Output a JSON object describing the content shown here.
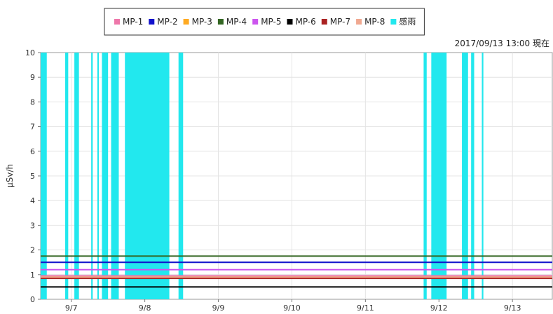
{
  "chart_data": {
    "type": "line",
    "title": "",
    "ylabel": "μSv/h",
    "xlabel": "",
    "annotation": "2017/09/13 13:00 現在",
    "ylim": [
      0,
      10
    ],
    "yticks": [
      0,
      1,
      2,
      3,
      4,
      5,
      6,
      7,
      8,
      9,
      10
    ],
    "xlim": [
      "2017-09-06 14:00",
      "2017-09-13 13:00"
    ],
    "x_tick_labels": [
      "9/7",
      "9/8",
      "9/9",
      "9/10",
      "9/11",
      "9/12",
      "9/13"
    ],
    "grid": true,
    "legend_position": "top-center",
    "series": [
      {
        "name": "MP-1",
        "color": "#ee77aa",
        "y": 0.95
      },
      {
        "name": "MP-2",
        "color": "#1111cc",
        "y": 1.5
      },
      {
        "name": "MP-3",
        "color": "#ffaa22",
        "y": 0.9
      },
      {
        "name": "MP-4",
        "color": "#336622",
        "y": 1.75
      },
      {
        "name": "MP-5",
        "color": "#cc55ee",
        "y": 1.2
      },
      {
        "name": "MP-6",
        "color": "#000000",
        "y": 0.5
      },
      {
        "name": "MP-7",
        "color": "#aa2222",
        "y": 0.85
      },
      {
        "name": "MP-8",
        "color": "#f0a890",
        "y": 0.9
      }
    ],
    "rain": {
      "name": "感雨",
      "color": "#22e8ee",
      "periods": [
        [
          "2017-09-06 14:00",
          "2017-09-06 16:00"
        ],
        [
          "2017-09-06 22:00",
          "2017-09-06 23:00"
        ],
        [
          "2017-09-07 01:00",
          "2017-09-07 02:30"
        ],
        [
          "2017-09-07 06:30",
          "2017-09-07 07:00"
        ],
        [
          "2017-09-07 08:30",
          "2017-09-07 09:00"
        ],
        [
          "2017-09-07 10:00",
          "2017-09-07 12:00"
        ],
        [
          "2017-09-07 13:00",
          "2017-09-07 15:30"
        ],
        [
          "2017-09-07 17:30",
          "2017-09-08 08:00"
        ],
        [
          "2017-09-08 11:00",
          "2017-09-08 12:30"
        ],
        [
          "2017-09-11 19:00",
          "2017-09-11 20:00"
        ],
        [
          "2017-09-11 21:30",
          "2017-09-12 02:30"
        ],
        [
          "2017-09-12 07:30",
          "2017-09-12 09:30"
        ],
        [
          "2017-09-12 10:30",
          "2017-09-12 11:30"
        ],
        [
          "2017-09-12 14:00",
          "2017-09-12 14:30"
        ]
      ]
    }
  }
}
